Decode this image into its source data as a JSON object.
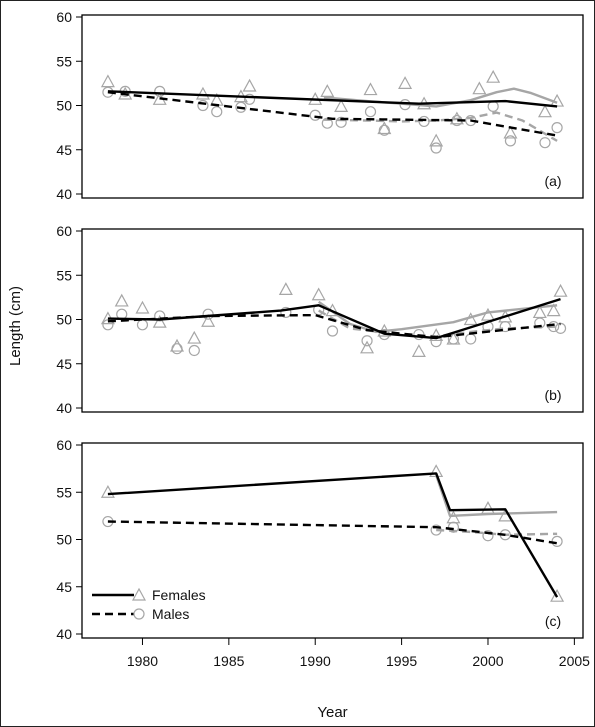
{
  "chart_data": {
    "type": "line",
    "xlabel": "Year",
    "ylabel": "Length (cm)",
    "xlim": [
      1976.5,
      2005.5
    ],
    "ylim": [
      40,
      60
    ],
    "xticks": [
      "1980",
      "1985",
      "1990",
      "1995",
      "2000",
      "2005"
    ],
    "yticks": [
      "40",
      "45",
      "50",
      "55",
      "60"
    ],
    "legend": {
      "position": "bottom-left of panel (c)",
      "entries": [
        {
          "label": "Females",
          "style": "solid black line, triangle marker"
        },
        {
          "label": "Males",
          "style": "dashed black line, circle marker"
        }
      ]
    },
    "colors": {
      "fit": "#000000",
      "smooth": "#a6a6a6",
      "points": "#a6a6a6"
    },
    "panels": [
      {
        "label": "(a)",
        "females_points": [
          [
            1978,
            52.7
          ],
          [
            1979,
            51.3
          ],
          [
            1981,
            50.7
          ],
          [
            1983.5,
            51.3
          ],
          [
            1984.3,
            50.6
          ],
          [
            1985.7,
            51.0
          ],
          [
            1986.2,
            52.2
          ],
          [
            1990,
            50.7
          ],
          [
            1990.7,
            51.6
          ],
          [
            1991.5,
            49.9
          ],
          [
            1993.2,
            51.8
          ],
          [
            1994,
            47.4
          ],
          [
            1995.2,
            52.5
          ],
          [
            1996.3,
            50.2
          ],
          [
            1997,
            46.0
          ],
          [
            1998.2,
            48.5
          ],
          [
            1999.5,
            51.9
          ],
          [
            2000.3,
            53.2
          ],
          [
            2001.3,
            46.9
          ],
          [
            2003.3,
            49.3
          ],
          [
            2004,
            50.5
          ]
        ],
        "males_points": [
          [
            1978,
            51.5
          ],
          [
            1979,
            51.6
          ],
          [
            1981,
            51.6
          ],
          [
            1983.5,
            50.0
          ],
          [
            1984.3,
            49.3
          ],
          [
            1985.7,
            49.8
          ],
          [
            1986.2,
            50.7
          ],
          [
            1990,
            48.9
          ],
          [
            1990.7,
            48.0
          ],
          [
            1991.5,
            48.1
          ],
          [
            1993.2,
            49.3
          ],
          [
            1994,
            47.2
          ],
          [
            1995.2,
            50.1
          ],
          [
            1996.3,
            48.2
          ],
          [
            1997,
            45.2
          ],
          [
            1998.2,
            48.3
          ],
          [
            1999,
            48.3
          ],
          [
            2000.3,
            49.9
          ],
          [
            2001.3,
            46.0
          ],
          [
            2003.3,
            45.8
          ],
          [
            2004,
            47.5
          ]
        ],
        "females_fit": [
          [
            1978,
            51.6
          ],
          [
            1996,
            50.2
          ],
          [
            2001,
            50.5
          ],
          [
            2004,
            49.9
          ]
        ],
        "males_fit": [
          [
            1978,
            51.5
          ],
          [
            1991,
            48.5
          ],
          [
            1999,
            48.3
          ],
          [
            2004,
            46.6
          ]
        ],
        "females_smooth": [
          [
            1990.5,
            50.9
          ],
          [
            1993,
            50.5
          ],
          [
            1995,
            50.2
          ],
          [
            1997,
            49.9
          ],
          [
            1999,
            50.6
          ],
          [
            2000.5,
            51.5
          ],
          [
            2001.5,
            51.9
          ],
          [
            2002.5,
            51.4
          ],
          [
            2004,
            50.3
          ]
        ],
        "males_smooth": [
          [
            1990.5,
            48.4
          ],
          [
            1993,
            48.3
          ],
          [
            1995,
            48.2
          ],
          [
            1997,
            48.3
          ],
          [
            1999,
            48.6
          ],
          [
            2000.5,
            49.2
          ],
          [
            2002,
            48.3
          ],
          [
            2004,
            46.0
          ]
        ]
      },
      {
        "label": "(b)",
        "females_points": [
          [
            1978,
            50.1
          ],
          [
            1978.8,
            52.1
          ],
          [
            1980,
            51.3
          ],
          [
            1981,
            49.7
          ],
          [
            1982,
            47.0
          ],
          [
            1983,
            47.9
          ],
          [
            1983.8,
            49.8
          ],
          [
            1988.3,
            53.4
          ],
          [
            1990.2,
            52.8
          ],
          [
            1991,
            51.0
          ],
          [
            1993,
            46.8
          ],
          [
            1994,
            48.7
          ],
          [
            1996,
            46.4
          ],
          [
            1997,
            48.2
          ],
          [
            1998,
            47.8
          ],
          [
            1999,
            50.0
          ],
          [
            2000,
            50.5
          ],
          [
            2001,
            50.3
          ],
          [
            2003,
            50.8
          ],
          [
            2003.8,
            51.0
          ],
          [
            2004.2,
            53.2
          ]
        ],
        "males_points": [
          [
            1978,
            49.4
          ],
          [
            1978.8,
            50.6
          ],
          [
            1980,
            49.4
          ],
          [
            1981,
            50.4
          ],
          [
            1982,
            46.7
          ],
          [
            1983,
            46.5
          ],
          [
            1983.8,
            50.6
          ],
          [
            1988.3,
            50.8
          ],
          [
            1990.2,
            51.1
          ],
          [
            1991,
            48.7
          ],
          [
            1993,
            47.6
          ],
          [
            1994,
            48.3
          ],
          [
            1996,
            48.3
          ],
          [
            1997,
            47.5
          ],
          [
            1998,
            47.8
          ],
          [
            1999,
            47.8
          ],
          [
            2000,
            49.2
          ],
          [
            2001,
            49.2
          ],
          [
            2003,
            49.6
          ],
          [
            2003.8,
            49.2
          ],
          [
            2004.2,
            49.0
          ]
        ],
        "females_fit": [
          [
            1978,
            50.1
          ],
          [
            1981,
            50.0
          ],
          [
            1988,
            51.0
          ],
          [
            1990.2,
            51.6
          ],
          [
            1994,
            48.4
          ],
          [
            1997,
            47.9
          ],
          [
            2004.2,
            52.3
          ]
        ],
        "males_fit": [
          [
            1978,
            49.8
          ],
          [
            1984,
            50.4
          ],
          [
            1990,
            50.5
          ],
          [
            1993,
            48.8
          ],
          [
            1997,
            48.0
          ],
          [
            2004.2,
            49.5
          ]
        ],
        "females_smooth": [
          [
            1990.2,
            52.0
          ],
          [
            1992,
            49.5
          ],
          [
            1993.5,
            48.6
          ],
          [
            1995,
            48.9
          ],
          [
            1998,
            49.7
          ],
          [
            2000,
            50.8
          ],
          [
            2004,
            51.6
          ]
        ],
        "males_smooth": [
          [
            1990.2,
            51.0
          ],
          [
            1992,
            49.0
          ],
          [
            1995,
            48.3
          ],
          [
            1997,
            48.1
          ],
          [
            1999,
            48.6
          ],
          [
            2001,
            49.0
          ],
          [
            2004,
            49.2
          ]
        ]
      },
      {
        "label": "(c)",
        "females_points": [
          [
            1978,
            55.0
          ],
          [
            1997,
            57.2
          ],
          [
            1998,
            52.3
          ],
          [
            2000,
            53.3
          ],
          [
            2001,
            52.5
          ],
          [
            2004,
            44.0
          ]
        ],
        "males_points": [
          [
            1978,
            51.9
          ],
          [
            1997,
            51.0
          ],
          [
            1998,
            51.3
          ],
          [
            2000,
            50.4
          ],
          [
            2001,
            50.5
          ],
          [
            2004,
            49.8
          ]
        ],
        "females_fit": [
          [
            1978,
            54.8
          ],
          [
            1997,
            57.0
          ],
          [
            1997.8,
            53.1
          ],
          [
            2001,
            53.2
          ],
          [
            2004,
            43.9
          ]
        ],
        "males_fit": [
          [
            1978,
            51.9
          ],
          [
            1997,
            51.3
          ],
          [
            2001,
            50.5
          ],
          [
            2004,
            49.6
          ]
        ],
        "females_smooth": [
          [
            1997,
            56.8
          ],
          [
            1997.8,
            52.5
          ],
          [
            2000,
            52.7
          ],
          [
            2004,
            52.9
          ]
        ],
        "males_smooth": [
          [
            1997,
            51.0
          ],
          [
            1999,
            50.8
          ],
          [
            2001,
            50.5
          ],
          [
            2004,
            50.6
          ]
        ]
      }
    ]
  }
}
